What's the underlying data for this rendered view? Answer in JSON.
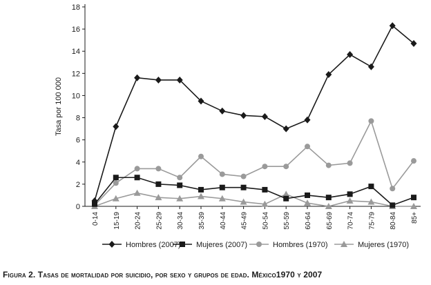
{
  "chart_data": {
    "type": "line",
    "ylabel": "Tasa por 100 000",
    "xlabel": "",
    "ylim": [
      0,
      18
    ],
    "yticks": [
      0,
      2,
      4,
      6,
      8,
      10,
      12,
      14,
      16,
      18
    ],
    "grid": false,
    "legend_position": "bottom",
    "categories": [
      "0-14",
      "15-19",
      "20-24",
      "25-29",
      "30-34",
      "35-39",
      "40-44",
      "45-49",
      "50-54",
      "55-59",
      "60-64",
      "65-69",
      "70-74",
      "75-79",
      "80-84",
      "85+"
    ],
    "series": [
      {
        "name": "Hombres (2007)",
        "marker": "diamond",
        "color": "#1a1a1a",
        "values": [
          0.5,
          7.2,
          11.6,
          11.4,
          11.4,
          9.5,
          8.6,
          8.2,
          8.1,
          7.0,
          7.8,
          11.9,
          13.7,
          12.6,
          16.3,
          14.7
        ]
      },
      {
        "name": "Mujeres (2007)",
        "marker": "square",
        "color": "#1a1a1a",
        "values": [
          0.2,
          2.6,
          2.6,
          2.0,
          1.9,
          1.5,
          1.7,
          1.7,
          1.5,
          0.7,
          1.0,
          0.8,
          1.1,
          1.8,
          0.1,
          0.8
        ]
      },
      {
        "name": "Hombres (1970)",
        "marker": "circle",
        "color": "#9a9a9a",
        "values": [
          0.1,
          2.1,
          3.4,
          3.4,
          2.6,
          4.5,
          2.9,
          2.7,
          3.6,
          3.6,
          5.4,
          3.7,
          3.9,
          7.7,
          1.6,
          4.1
        ]
      },
      {
        "name": "Mujeres (1970)",
        "marker": "triangle",
        "color": "#9a9a9a",
        "values": [
          0.0,
          0.7,
          1.2,
          0.8,
          0.7,
          0.9,
          0.7,
          0.4,
          0.2,
          1.1,
          0.3,
          0.0,
          0.5,
          0.4,
          0.0,
          0.0
        ]
      }
    ]
  },
  "caption": "Figura 2. Tasas de mortalidad por suicidio, por sexo y grupos de edad. México1970 y 2007"
}
